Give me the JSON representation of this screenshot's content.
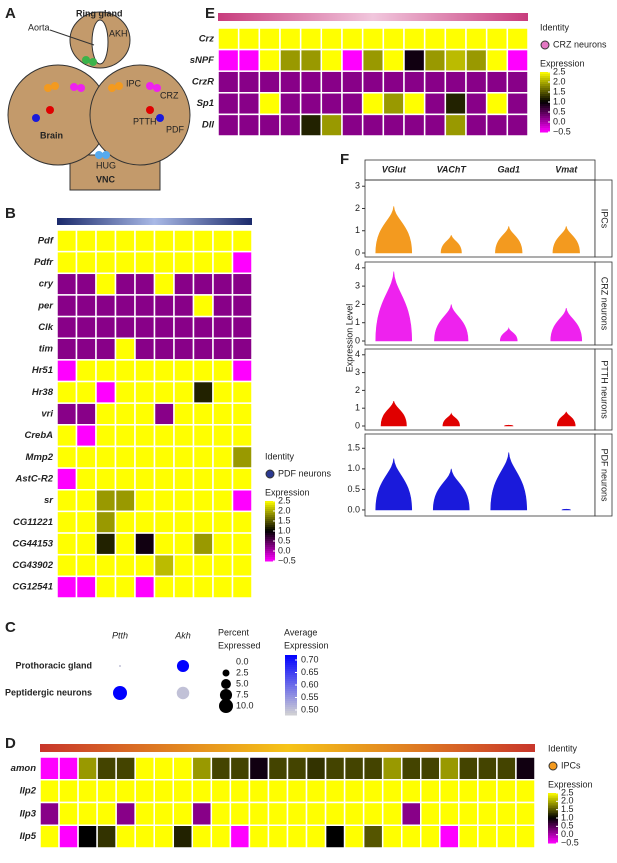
{
  "panel_labels": [
    "A",
    "B",
    "C",
    "D",
    "E",
    "F"
  ],
  "diagram": {
    "labels": [
      "Aorta",
      "Ring gland",
      "AKH",
      "IPC",
      "CRZ",
      "PTTH",
      "PDF",
      "Brain",
      "HUG",
      "VNC"
    ]
  },
  "chart_data": [
    {
      "type": "heatmap",
      "rows": [
        "Pdf",
        "Pdfr",
        "cry",
        "per",
        "Clk",
        "tim",
        "Hr51",
        "Hr38",
        "vri",
        "CrebA",
        "Mmp2",
        "AstC-R2",
        "sr",
        "CG11221",
        "CG44153",
        "CG43902",
        "CG12541"
      ],
      "values": [
        [
          2.5,
          2.5,
          2.5,
          2.5,
          2.5,
          2.5,
          2.5,
          2.5,
          2.5,
          2.5
        ],
        [
          2.5,
          2.5,
          2.5,
          2.5,
          2.5,
          2.5,
          2.5,
          2.5,
          2.5,
          -0.5
        ],
        [
          0.2,
          0.2,
          2.5,
          0.2,
          0.2,
          2.5,
          0.2,
          0.2,
          0.2,
          0.2
        ],
        [
          0.2,
          0.2,
          0.2,
          0.2,
          0.2,
          0.2,
          0.2,
          2.5,
          0.2,
          0.2
        ],
        [
          0.2,
          0.2,
          0.2,
          0.2,
          0.2,
          0.2,
          0.2,
          0.2,
          0.2,
          0.2
        ],
        [
          0.2,
          0.2,
          0.2,
          2.5,
          0.2,
          0.2,
          0.2,
          0.2,
          0.2,
          0.2
        ],
        [
          -0.5,
          2.5,
          2.5,
          2.5,
          2.5,
          2.5,
          2.5,
          2.5,
          2.5,
          -0.5
        ],
        [
          2.5,
          2.5,
          -0.5,
          2.5,
          2.5,
          2.5,
          2.5,
          1.2,
          2.5,
          2.5
        ],
        [
          0.2,
          0.2,
          2.5,
          2.5,
          2.5,
          0.2,
          2.5,
          2.5,
          2.5,
          2.5
        ],
        [
          2.5,
          -0.5,
          2.5,
          2.5,
          2.5,
          2.5,
          2.5,
          2.5,
          2.5,
          2.5
        ],
        [
          2.5,
          2.5,
          2.5,
          2.5,
          2.5,
          2.5,
          2.5,
          2.5,
          2.5,
          1.9
        ],
        [
          -0.5,
          2.5,
          2.5,
          2.5,
          2.5,
          2.5,
          2.5,
          2.5,
          2.5,
          2.5
        ],
        [
          2.5,
          2.5,
          1.9,
          1.9,
          2.5,
          2.5,
          2.5,
          2.5,
          2.5,
          -0.5
        ],
        [
          2.5,
          2.5,
          1.9,
          2.5,
          2.5,
          2.5,
          2.5,
          2.5,
          2.5,
          2.5
        ],
        [
          2.5,
          2.5,
          1.2,
          2.5,
          0.9,
          2.5,
          2.5,
          1.9,
          2.5,
          2.5
        ],
        [
          2.5,
          2.5,
          2.5,
          2.5,
          2.5,
          2.1,
          2.5,
          2.5,
          2.5,
          2.5
        ],
        [
          -0.5,
          -0.5,
          2.5,
          2.5,
          -0.5,
          2.5,
          2.5,
          2.5,
          2.5,
          2.5
        ]
      ],
      "identity_title": "Identity",
      "identity": "PDF neurons",
      "identity_color": "#2b3990",
      "legend_title": "Expression",
      "clim": [
        -0.5,
        2.5
      ],
      "colorscale": [
        "#ff00ff",
        "#000000",
        "#ffff00"
      ],
      "colorbar_ticks": [
        2.5,
        {
          "value": 2.0,
          "label": "2.0"
        },
        1.5,
        {
          "value": 1.0,
          "label": "1.0"
        },
        0.5,
        {
          "value": 0.0,
          "label": "0.0"
        },
        {
          "value": -0.5,
          "label": "−0.5"
        }
      ]
    },
    {
      "type": "dot",
      "columns": [
        "Ptth",
        "Akh"
      ],
      "rows": [
        "Prothoracic gland",
        "Peptidergic neurons"
      ],
      "percent": [
        [
          0.2,
          7.5
        ],
        [
          10,
          8
        ]
      ],
      "average": [
        [
          0.5,
          0.72
        ],
        [
          0.72,
          0.5
        ]
      ],
      "size_title": [
        "Percent",
        "Expressed"
      ],
      "size_ticks": [
        {
          "value": 0.0,
          "label": "0.0"
        },
        2.5,
        {
          "value": 5.0,
          "label": "5.0"
        },
        7.5,
        {
          "value": 10.0,
          "label": "10.0"
        }
      ],
      "color_title": [
        "Average",
        "Expression"
      ],
      "color_lim": [
        0.48,
        0.72
      ],
      "colorscale": [
        "#d3d3d3",
        "#0000ff"
      ],
      "color_ticks": [
        {
          "value": 0.7,
          "label": "0.70"
        },
        0.65,
        {
          "value": 0.6,
          "label": "0.60"
        },
        0.55,
        {
          "value": 0.5,
          "label": "0.50"
        }
      ]
    },
    {
      "type": "heatmap",
      "rows": [
        "amon",
        "Ilp2",
        "Ilp3",
        "Ilp5"
      ],
      "values": [
        [
          -0.5,
          -0.5,
          1.9,
          1.4,
          1.4,
          2.5,
          2.5,
          2.5,
          1.9,
          1.4,
          1.4,
          0.9,
          1.4,
          1.4,
          1.3,
          1.4,
          1.4,
          1.4,
          1.9,
          1.4,
          1.4,
          1.9,
          1.4,
          1.4,
          1.4,
          0.9
        ],
        [
          2.5,
          2.5,
          2.5,
          2.5,
          2.5,
          2.5,
          2.5,
          2.5,
          2.5,
          2.5,
          2.5,
          2.5,
          2.5,
          2.5,
          2.5,
          2.5,
          2.5,
          2.5,
          2.5,
          2.5,
          2.5,
          2.5,
          2.5,
          2.5,
          2.5,
          2.5
        ],
        [
          0.2,
          2.5,
          2.5,
          2.5,
          0.2,
          2.5,
          2.5,
          2.5,
          0.2,
          2.5,
          2.5,
          2.5,
          2.5,
          2.5,
          2.5,
          2.5,
          2.5,
          2.5,
          2.5,
          0.2,
          2.5,
          2.5,
          2.5,
          2.5,
          2.5,
          2.5
        ],
        [
          2.5,
          -0.5,
          1.0,
          1.3,
          2.5,
          2.5,
          2.5,
          1.2,
          2.5,
          2.5,
          -0.5,
          2.5,
          2.5,
          2.5,
          2.5,
          1.0,
          2.5,
          1.5,
          2.5,
          2.5,
          2.5,
          -0.5,
          2.5,
          2.5,
          2.5,
          2.5
        ]
      ],
      "identity_title": "Identity",
      "identity": "IPCs",
      "identity_color": "#f39a1f",
      "legend_title": "Expression",
      "clim": [
        -0.5,
        2.5
      ],
      "colorscale": [
        "#ff00ff",
        "#000000",
        "#ffff00"
      ],
      "colorbar_ticks": [
        2.5,
        {
          "value": 2.0,
          "label": "2.0"
        },
        1.5,
        {
          "value": 1.0,
          "label": "1.0"
        },
        0.5,
        {
          "value": 0.0,
          "label": "0.0"
        },
        {
          "value": -0.5,
          "label": "−0.5"
        }
      ]
    },
    {
      "type": "heatmap",
      "rows": [
        "Crz",
        "sNPF",
        "CrzR",
        "Sp1",
        "Dll"
      ],
      "values": [
        [
          2.5,
          2.5,
          2.5,
          2.5,
          2.5,
          2.5,
          2.5,
          2.5,
          2.5,
          2.5,
          2.5,
          2.5,
          2.5,
          2.5,
          2.5
        ],
        [
          -0.5,
          -0.5,
          2.5,
          1.9,
          1.9,
          2.5,
          -0.5,
          1.9,
          2.5,
          0.9,
          1.9,
          2.1,
          1.9,
          2.5,
          -0.5
        ],
        [
          0.2,
          0.2,
          0.2,
          0.2,
          0.2,
          0.2,
          0.2,
          0.2,
          0.2,
          0.2,
          0.2,
          0.2,
          0.2,
          0.2,
          0.2
        ],
        [
          0.2,
          0.2,
          2.5,
          0.2,
          0.2,
          0.2,
          0.2,
          2.5,
          1.9,
          2.5,
          0.2,
          1.2,
          0.2,
          2.5,
          0.2
        ],
        [
          0.2,
          0.2,
          0.2,
          0.2,
          1.2,
          1.9,
          0.2,
          0.2,
          0.2,
          0.2,
          0.2,
          1.9,
          0.2,
          0.2,
          0.2
        ]
      ],
      "identity_title": "Identity",
      "identity": "CRZ neurons",
      "identity_color": "#e377c2",
      "legend_title": "Expression",
      "clim": [
        -0.5,
        2.5
      ],
      "colorscale": [
        "#ff00ff",
        "#000000",
        "#ffff00"
      ],
      "colorbar_ticks": [
        2.5,
        {
          "value": 2.0,
          "label": "2.0"
        },
        1.5,
        {
          "value": 1.0,
          "label": "1.0"
        },
        0.5,
        {
          "value": 0.0,
          "label": "0.0"
        },
        {
          "value": -0.5,
          "label": "−0.5"
        }
      ]
    },
    {
      "type": "violin",
      "genes": [
        "VGlut",
        "VAChT",
        "Gad1",
        "Vmat"
      ],
      "ylabel": "Expression Level",
      "panels": [
        {
          "name": "IPCs",
          "color": "#f39a1f",
          "values": [
            2.1,
            0.8,
            1.2,
            1.2
          ],
          "ylim": [
            0,
            3.1
          ],
          "yticks": [
            0,
            1,
            2,
            3
          ]
        },
        {
          "name": "CRZ neurons",
          "color": "#ee22ee",
          "values": [
            3.8,
            2.0,
            0.7,
            1.8
          ],
          "ylim": [
            0,
            4.1
          ],
          "yticks": [
            0,
            1,
            2,
            3,
            4
          ]
        },
        {
          "name": "PTTH neurons",
          "color": "#e00000",
          "values": [
            1.4,
            0.7,
            0.05,
            0.8
          ],
          "ylim": [
            0,
            4.1
          ],
          "yticks": [
            0,
            1,
            2,
            3,
            4
          ]
        },
        {
          "name": "PDF neurons",
          "color": "#1a1adb",
          "values": [
            1.25,
            1.0,
            1.4,
            0.02
          ],
          "ylim": [
            -0.05,
            1.75
          ],
          "yticks": [
            {
              "value": 0.0,
              "label": "0.0"
            },
            0.5,
            {
              "value": 1.0,
              "label": "1.0"
            },
            1.5
          ]
        }
      ]
    }
  ]
}
